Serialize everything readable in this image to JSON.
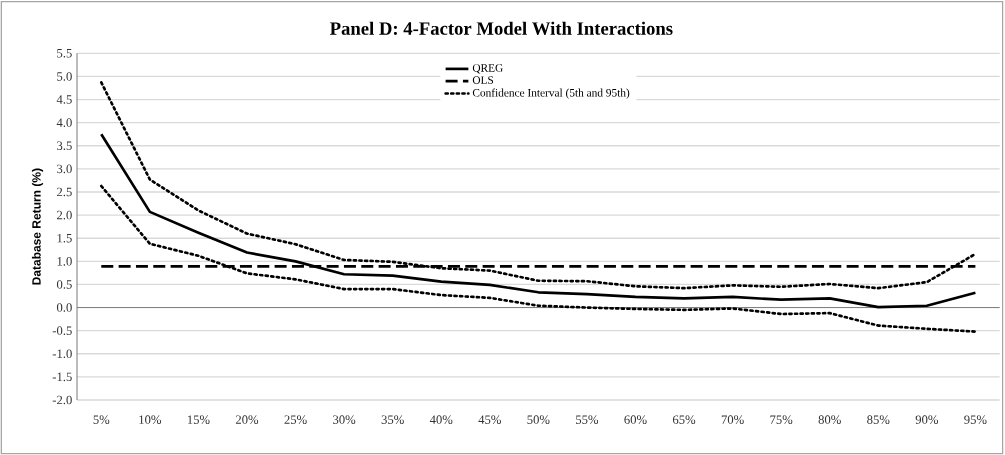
{
  "chart_data": {
    "type": "line",
    "title": "Panel D: 4-Factor Model With Interactions",
    "ylabel": "Database Return (%)",
    "categories": [
      "5%",
      "10%",
      "15%",
      "20%",
      "25%",
      "30%",
      "35%",
      "40%",
      "45%",
      "50%",
      "55%",
      "60%",
      "65%",
      "70%",
      "75%",
      "80%",
      "85%",
      "90%",
      "95%"
    ],
    "series": [
      {
        "name": "QREG",
        "color": "#000000",
        "line_style": "solid",
        "values": [
          3.75,
          2.07,
          1.62,
          1.19,
          1.0,
          0.72,
          0.69,
          0.56,
          0.49,
          0.33,
          0.29,
          0.23,
          0.2,
          0.23,
          0.17,
          0.2,
          0.01,
          0.04,
          0.32
        ]
      },
      {
        "name": "OLS",
        "color": "#000000",
        "line_style": "dashed",
        "values": [
          0.89,
          0.89,
          0.89,
          0.89,
          0.89,
          0.89,
          0.89,
          0.89,
          0.89,
          0.89,
          0.89,
          0.89,
          0.89,
          0.89,
          0.89,
          0.89,
          0.89,
          0.89,
          0.89
        ]
      },
      {
        "name": "Confidence Interval (5th and 95th)",
        "color": "#000000",
        "line_style": "dotted",
        "values": [
          4.87,
          2.77,
          2.1,
          1.6,
          1.37,
          1.03,
          0.99,
          0.85,
          0.8,
          0.58,
          0.57,
          0.46,
          0.42,
          0.48,
          0.45,
          0.51,
          0.42,
          0.55,
          1.16
        ]
      },
      {
        "color": "#000000",
        "line_style": "dotted",
        "values": [
          2.63,
          1.38,
          1.12,
          0.74,
          0.61,
          0.4,
          0.4,
          0.27,
          0.21,
          0.04,
          0.0,
          -0.03,
          -0.05,
          -0.02,
          -0.14,
          -0.12,
          -0.39,
          -0.46,
          -0.52
        ]
      }
    ],
    "ylim": [
      -2.0,
      5.5
    ],
    "yticks": [
      {
        "value": -2,
        "label": "-2.0"
      },
      {
        "value": -1.5,
        "label": "-1.5"
      },
      {
        "value": -1,
        "label": "-1.0"
      },
      {
        "value": -0.5,
        "label": "-0.5"
      },
      {
        "value": 0,
        "label": "0.0"
      },
      {
        "value": 0.5,
        "label": "0.5"
      },
      {
        "value": 1,
        "label": "1.0"
      },
      {
        "value": 1.5,
        "label": "1.5"
      },
      {
        "value": 2,
        "label": "2.0"
      },
      {
        "value": 2.5,
        "label": "2.5"
      },
      {
        "value": 3,
        "label": "3.0"
      },
      {
        "value": 3.5,
        "label": "3.5"
      },
      {
        "value": 4,
        "label": "4.0"
      },
      {
        "value": 4.5,
        "label": "4.5"
      },
      {
        "value": 5,
        "label": "5.0"
      },
      {
        "value": 5.5,
        "label": "5.5"
      }
    ],
    "grid": "y",
    "legend": "top",
    "marker": "none"
  }
}
